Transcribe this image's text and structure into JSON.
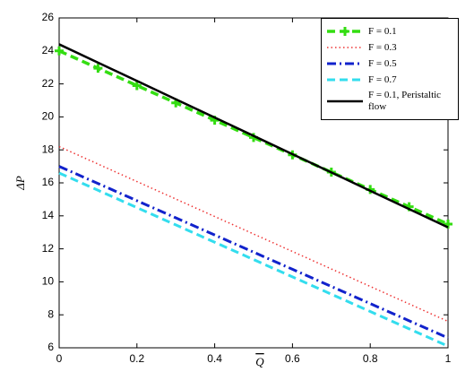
{
  "chart_data": {
    "type": "line",
    "xlabel": "Q",
    "ylabel": "ΔP",
    "x": [
      0,
      0.1,
      0.2,
      0.3,
      0.4,
      0.5,
      0.6,
      0.7,
      0.8,
      0.9,
      1
    ],
    "xlim": [
      0,
      1
    ],
    "xticks": [
      0,
      0.2,
      0.4,
      0.6,
      0.8,
      1
    ],
    "ylim": [
      6,
      26
    ],
    "yticks": [
      6,
      8,
      10,
      12,
      14,
      16,
      18,
      20,
      22,
      24,
      26
    ],
    "grid": false,
    "legend": "upper right",
    "series": [
      {
        "name": "F = 0.1",
        "color": "#33dd11",
        "style": "dashed-plus",
        "values": [
          24.0,
          22.95,
          21.9,
          20.85,
          19.8,
          18.75,
          17.7,
          16.65,
          15.6,
          14.55,
          13.5
        ]
      },
      {
        "name": "F = 0.3",
        "color": "#ee3333",
        "style": "dotted",
        "values": [
          18.2,
          17.14,
          16.08,
          15.02,
          13.96,
          12.9,
          11.84,
          10.78,
          9.72,
          8.66,
          7.6
        ]
      },
      {
        "name": "F = 0.5",
        "color": "#1122cc",
        "style": "dashdot",
        "values": [
          17.0,
          15.96,
          14.92,
          13.88,
          12.84,
          11.8,
          10.76,
          9.72,
          8.68,
          7.64,
          6.6
        ]
      },
      {
        "name": "F = 0.7",
        "color": "#33ddee",
        "style": "dashed",
        "values": [
          16.6,
          15.55,
          14.5,
          13.45,
          12.4,
          11.35,
          10.3,
          9.25,
          8.2,
          7.15,
          6.1
        ]
      },
      {
        "name": "F = 0.1, Peristaltic flow",
        "color": "#000000",
        "style": "solid",
        "values": [
          24.4,
          23.29,
          22.18,
          21.07,
          19.96,
          18.85,
          17.74,
          16.63,
          15.52,
          14.41,
          13.3
        ]
      }
    ]
  }
}
